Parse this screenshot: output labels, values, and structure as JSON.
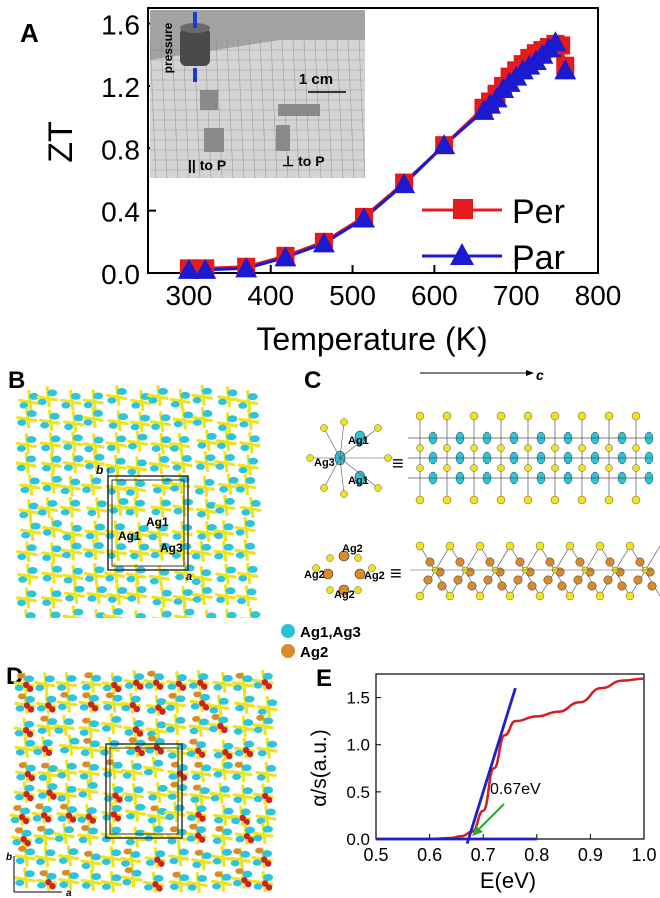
{
  "panels": {
    "A": {
      "letter": "A",
      "chart_data": {
        "type": "line",
        "xlabel": "Temperature (K)",
        "ylabel": "ZT",
        "xlim": [
          250,
          800
        ],
        "ylim": [
          0,
          1.7
        ],
        "xticks": [
          "300",
          "400",
          "500",
          "600",
          "700",
          "800"
        ],
        "yticks": [
          "0.0",
          "0.4",
          "0.8",
          "1.2",
          "1.6"
        ],
        "legend_placement": "right",
        "series": [
          {
            "name": "Per",
            "marker": "square",
            "color": "#e41a1c",
            "points": [
              [
                300,
                0.03
              ],
              [
                320,
                0.03
              ],
              [
                370,
                0.04
              ],
              [
                418,
                0.11
              ],
              [
                465,
                0.2
              ],
              [
                514,
                0.36
              ],
              [
                563,
                0.58
              ],
              [
                612,
                0.82
              ],
              [
                660,
                1.06
              ],
              [
                668,
                1.1
              ],
              [
                676,
                1.15
              ],
              [
                684,
                1.2
              ],
              [
                692,
                1.26
              ],
              [
                700,
                1.3
              ],
              [
                708,
                1.34
              ],
              [
                716,
                1.38
              ],
              [
                724,
                1.41
              ],
              [
                732,
                1.43
              ],
              [
                740,
                1.45
              ],
              [
                748,
                1.47
              ],
              [
                755,
                1.46
              ],
              [
                760,
                1.33
              ]
            ]
          },
          {
            "name": "Par",
            "marker": "triangle",
            "color": "#1a1ad0",
            "points": [
              [
                300,
                0.02
              ],
              [
                320,
                0.02
              ],
              [
                370,
                0.03
              ],
              [
                418,
                0.1
              ],
              [
                465,
                0.19
              ],
              [
                514,
                0.35
              ],
              [
                563,
                0.57
              ],
              [
                612,
                0.82
              ],
              [
                660,
                1.04
              ],
              [
                668,
                1.08
              ],
              [
                676,
                1.12
              ],
              [
                684,
                1.18
              ],
              [
                692,
                1.22
              ],
              [
                700,
                1.26
              ],
              [
                708,
                1.3
              ],
              [
                716,
                1.33
              ],
              [
                724,
                1.36
              ],
              [
                732,
                1.4
              ],
              [
                740,
                1.44
              ],
              [
                748,
                1.48
              ],
              [
                760,
                1.3
              ]
            ]
          }
        ]
      },
      "inset": {
        "pressure_label": "pressure",
        "scale_label": "1 cm",
        "par_label": "|| to P",
        "perp_label": "⊥ to P"
      }
    },
    "B": {
      "letter": "B",
      "axis_a": "a",
      "axis_b": "b",
      "labels": [
        "Ag1",
        "Ag1",
        "Ag3"
      ]
    },
    "C": {
      "letter": "C",
      "axis_c": "c",
      "top_labels": [
        "Ag1",
        "Ag3",
        "Ag1"
      ],
      "bottom_labels": [
        "Ag2",
        "Ag2",
        "Ag2",
        "Ag2"
      ],
      "equiv": "≡",
      "legend": [
        {
          "label": "Ag1,Ag3",
          "color": "#29c3d8"
        },
        {
          "label": "Ag2",
          "color": "#d98a2a"
        }
      ]
    },
    "D": {
      "letter": "D",
      "axis_a": "a",
      "axis_b": "b"
    },
    "E": {
      "letter": "E",
      "chart_data": {
        "type": "line",
        "xlabel": "E(eV)",
        "ylabel": "α/s(a.u.)",
        "xlim": [
          0.5,
          1.0
        ],
        "ylim": [
          0,
          1.75
        ],
        "xticks": [
          "0.5",
          "0.6",
          "0.7",
          "0.8",
          "0.9",
          "1.0"
        ],
        "yticks": [
          "0.0",
          "0.5",
          "1.0",
          "1.5"
        ],
        "annotation": "0.67eV",
        "series": [
          {
            "color": "#d42020",
            "points": [
              [
                0.5,
                0.0
              ],
              [
                0.6,
                0.0
              ],
              [
                0.64,
                0.01
              ],
              [
                0.66,
                0.03
              ],
              [
                0.68,
                0.08
              ],
              [
                0.7,
                0.3
              ],
              [
                0.72,
                0.75
              ],
              [
                0.74,
                1.1
              ],
              [
                0.76,
                1.25
              ],
              [
                0.8,
                1.3
              ],
              [
                0.84,
                1.35
              ],
              [
                0.88,
                1.45
              ],
              [
                0.92,
                1.6
              ],
              [
                0.96,
                1.68
              ],
              [
                1.0,
                1.7
              ]
            ]
          },
          {
            "color": "#2020c8",
            "points": [
              [
                0.5,
                0.0
              ],
              [
                0.8,
                0.0
              ]
            ]
          },
          {
            "color": "#2020c8",
            "points": [
              [
                0.67,
                -0.05
              ],
              [
                0.76,
                1.6
              ]
            ]
          }
        ]
      }
    }
  }
}
